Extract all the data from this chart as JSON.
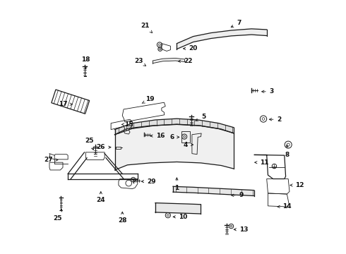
{
  "bg_color": "#ffffff",
  "line_color": "#1a1a1a",
  "fig_width": 4.9,
  "fig_height": 3.6,
  "dpi": 100,
  "label_fontsize": 6.5,
  "label_color": "#111111",
  "parts_coords": {
    "1": [
      0.515,
      0.31,
      0.0,
      -0.05
    ],
    "2": [
      0.87,
      0.53,
      0.05,
      0.0
    ],
    "3": [
      0.84,
      0.64,
      0.05,
      0.0
    ],
    "4": [
      0.59,
      0.43,
      -0.04,
      0.0
    ],
    "5": [
      0.58,
      0.52,
      0.04,
      0.02
    ],
    "6": [
      0.535,
      0.46,
      -0.04,
      0.0
    ],
    "7": [
      0.72,
      0.89,
      0.04,
      0.02
    ],
    "8": [
      0.95,
      0.44,
      0.0,
      -0.05
    ],
    "9": [
      0.72,
      0.23,
      0.05,
      0.0
    ],
    "10": [
      0.49,
      0.145,
      0.05,
      0.0
    ],
    "11": [
      0.82,
      0.36,
      0.04,
      0.0
    ],
    "12": [
      0.96,
      0.27,
      0.04,
      0.0
    ],
    "13": [
      0.73,
      0.095,
      0.05,
      0.0
    ],
    "14": [
      0.91,
      0.185,
      0.04,
      0.0
    ],
    "15": [
      0.295,
      0.51,
      0.03,
      0.0
    ],
    "16": [
      0.4,
      0.465,
      0.05,
      0.0
    ],
    "17": [
      0.105,
      0.59,
      -0.04,
      0.0
    ],
    "18": [
      0.155,
      0.72,
      0.0,
      0.045
    ],
    "19": [
      0.37,
      0.59,
      0.04,
      0.02
    ],
    "20": [
      0.53,
      0.81,
      0.05,
      0.0
    ],
    "21": [
      0.42,
      0.87,
      -0.03,
      0.03
    ],
    "22": [
      0.51,
      0.76,
      0.05,
      0.0
    ],
    "23": [
      0.395,
      0.74,
      -0.03,
      0.02
    ],
    "24": [
      0.215,
      0.255,
      0.0,
      -0.045
    ],
    "25a": [
      0.19,
      0.4,
      -0.02,
      0.045
    ],
    "25b": [
      0.065,
      0.185,
      -0.02,
      -0.045
    ],
    "26": [
      0.265,
      0.42,
      -0.05,
      0.0
    ],
    "27": [
      0.048,
      0.37,
      -0.04,
      0.0
    ],
    "28": [
      0.3,
      0.175,
      0.0,
      -0.045
    ],
    "29": [
      0.365,
      0.285,
      0.05,
      0.0
    ]
  }
}
